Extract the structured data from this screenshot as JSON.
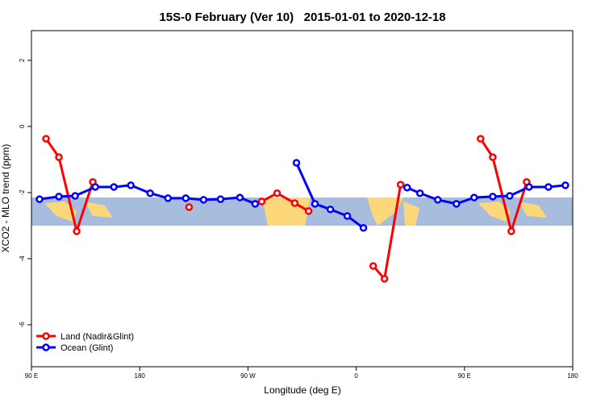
{
  "chart_data": {
    "type": "line",
    "title": "15S-0 February (Ver 10)   2015-01-01 to 2020-12-18",
    "x_label": "Longitude (deg E)",
    "y_label": "XCO2 - MLO trend (ppm)",
    "xlim": [
      90,
      540
    ],
    "ylim": [
      -7.27,
      2.9
    ],
    "xticks": [
      {
        "value": 90,
        "label": "90 E"
      },
      180,
      {
        "value": 270,
        "label": "90 W"
      },
      {
        "value": 360,
        "label": "0"
      },
      {
        "value": 450,
        "label": "90 E"
      },
      {
        "value": 540,
        "label": "180"
      }
    ],
    "yticks": [
      2,
      0,
      -2,
      -4,
      -6
    ],
    "legend": "bottom-left",
    "series": [
      {
        "name": "Land (Nadir&Glint)",
        "color": "#ff0000",
        "x": [
          102.1,
          112.8,
          127.6,
          141.0,
          null,
          221.0,
          null,
          281.4,
          294.2,
          308.9,
          320.4,
          null,
          374.1,
          383.5,
          396.9,
          null,
          463.4,
          473.5,
          488.9,
          501.7
        ],
        "values": [
          -0.37,
          -0.93,
          -3.17,
          -1.68,
          null,
          -2.44,
          null,
          -2.27,
          -2.02,
          -2.32,
          -2.56,
          null,
          -4.22,
          -4.61,
          -1.76,
          null,
          -0.37,
          -0.93,
          -3.17,
          -1.68
        ]
      },
      {
        "name": "Ocean (Glint)",
        "color": "#0000ff",
        "x": [
          96.7,
          112.8,
          126.3,
          143.1,
          158.5,
          172.6,
          188.7,
          203.5,
          218.3,
          233.1,
          247.2,
          263.3,
          276.0,
          null,
          310.3,
          325.7,
          338.5,
          352.6,
          366.0,
          null,
          402.3,
          413.0,
          427.8,
          443.3,
          458.0,
          473.5,
          487.6,
          503.7,
          519.8,
          533.9
        ],
        "values": [
          -2.2,
          -2.12,
          -2.1,
          -1.83,
          -1.83,
          -1.78,
          -2.02,
          -2.17,
          -2.17,
          -2.22,
          -2.2,
          -2.15,
          -2.34,
          null,
          -1.1,
          -2.34,
          -2.51,
          -2.71,
          -3.07,
          null,
          -1.85,
          -2.02,
          -2.22,
          -2.34,
          -2.15,
          -2.12,
          -2.1,
          -1.83,
          -1.83,
          -1.78
        ]
      }
    ]
  }
}
